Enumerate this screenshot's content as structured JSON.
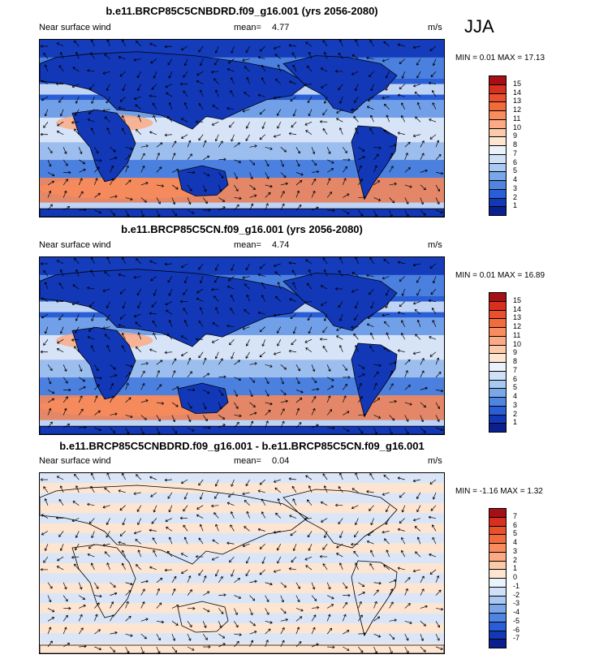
{
  "season": "JJA",
  "panels": [
    {
      "title": "b.e11.BRCP85C5CNBDRD.f09_g16.001 (yrs 2056-2080)",
      "variable": "Near surface wind",
      "mean_label": "mean=",
      "mean_value": "4.77",
      "units": "m/s",
      "minmax": "MIN =  0.01 MAX =  17.13",
      "legend_labels": [
        "15",
        "14",
        "13",
        "12",
        "11",
        "10",
        "9",
        "8",
        "7",
        "6",
        "5",
        "4",
        "3",
        "2",
        "1"
      ],
      "legend_colors": [
        "#a50f15",
        "#d7301f",
        "#e8502e",
        "#f26b3d",
        "#f88c5c",
        "#fbaa85",
        "#fcc9a9",
        "#fde5d2",
        "#eaf2fb",
        "#cfe0f7",
        "#a9c9f2",
        "#7aa7ea",
        "#4f84e0",
        "#2a5ed6",
        "#1238b8",
        "#0b1f8f"
      ]
    },
    {
      "title": "b.e11.BRCP85C5CN.f09_g16.001 (yrs 2056-2080)",
      "variable": "Near surface wind",
      "mean_label": "mean=",
      "mean_value": "4.74",
      "units": "m/s",
      "minmax": "MIN =  0.01 MAX =  16.89",
      "legend_labels": [
        "15",
        "14",
        "13",
        "12",
        "11",
        "10",
        "9",
        "8",
        "7",
        "6",
        "5",
        "4",
        "3",
        "2",
        "1"
      ],
      "legend_colors": [
        "#a50f15",
        "#d7301f",
        "#e8502e",
        "#f26b3d",
        "#f88c5c",
        "#fbaa85",
        "#fcc9a9",
        "#fde5d2",
        "#eaf2fb",
        "#cfe0f7",
        "#a9c9f2",
        "#7aa7ea",
        "#4f84e0",
        "#2a5ed6",
        "#1238b8",
        "#0b1f8f"
      ]
    },
    {
      "title": "b.e11.BRCP85C5CNBDRD.f09_g16.001 - b.e11.BRCP85C5CN.f09_g16.001",
      "variable": "Near surface wind",
      "mean_label": "mean=",
      "mean_value": "0.04",
      "units": "m/s",
      "minmax": "MIN = -1.16 MAX =  1.32",
      "legend_labels": [
        "7",
        "6",
        "5",
        "4",
        "3",
        "2",
        "1",
        "0",
        "-1",
        "-2",
        "-3",
        "-4",
        "-5",
        "-6",
        "-7"
      ],
      "legend_colors": [
        "#a50f15",
        "#d7301f",
        "#e8502e",
        "#f26b3d",
        "#f88c5c",
        "#fbaa85",
        "#fcc9a9",
        "#fde5d2",
        "#eaf2fb",
        "#cfe0f7",
        "#a9c9f2",
        "#7aa7ea",
        "#4f84e0",
        "#2a5ed6",
        "#1238b8",
        "#0b1f8f"
      ]
    }
  ]
}
